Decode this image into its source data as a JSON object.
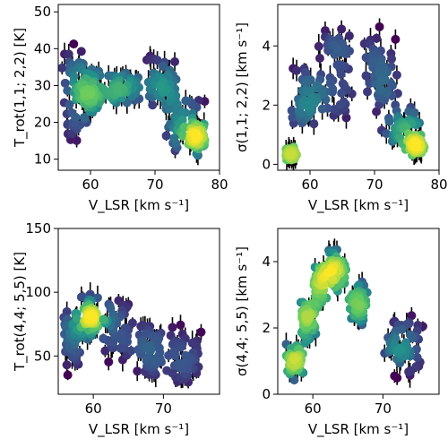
{
  "chart_data": [
    {
      "type": "scatter",
      "xlabel": "V_LSR [km s⁻¹]",
      "ylabel": "T_rot(1,1; 2,2) [K]",
      "xlim": [
        55,
        80
      ],
      "ylim": [
        7,
        52
      ],
      "xticks": [
        "60",
        "70",
        "80"
      ],
      "yticks": [
        "10",
        "20",
        "30",
        "40",
        "50"
      ],
      "error_bars": true,
      "color_encoding": "point density (viridis)",
      "colors": {
        "low": "#440154",
        "mid": "#21918c",
        "high": "#fde725"
      },
      "clusters": [
        {
          "x": [
            55.5,
            59.5
          ],
          "y": [
            12,
            44
          ]
        },
        {
          "x": [
            58,
            62
          ],
          "y": [
            22,
            35
          ]
        },
        {
          "x": [
            62,
            68
          ],
          "y": [
            24,
            34
          ]
        },
        {
          "x": [
            68,
            74
          ],
          "y": [
            22,
            42
          ]
        },
        {
          "x": [
            71,
            78
          ],
          "y": [
            10,
            28
          ]
        },
        {
          "x": [
            75,
            78
          ],
          "y": [
            12,
            20
          ]
        }
      ]
    },
    {
      "type": "scatter",
      "xlabel": "V_LSR [km s⁻¹]",
      "ylabel": "σ(1,1; 2,2) [km s⁻¹]",
      "xlim": [
        55,
        80
      ],
      "ylim": [
        -0.2,
        5.4
      ],
      "xticks": [
        "60",
        "70",
        "80"
      ],
      "yticks": [
        "0",
        "2",
        "4"
      ],
      "error_bars": true,
      "color_encoding": "point density (viridis)",
      "colors": {
        "low": "#440154",
        "mid": "#21918c",
        "high": "#fde725"
      },
      "clusters": [
        {
          "x": [
            56,
            58
          ],
          "y": [
            0.1,
            0.6
          ]
        },
        {
          "x": [
            57,
            62
          ],
          "y": [
            1.0,
            3.6
          ]
        },
        {
          "x": [
            61,
            67
          ],
          "y": [
            1.3,
            5.0
          ]
        },
        {
          "x": [
            68,
            74
          ],
          "y": [
            1.5,
            4.8
          ]
        },
        {
          "x": [
            71,
            78
          ],
          "y": [
            0.3,
            2.0
          ]
        },
        {
          "x": [
            75,
            78
          ],
          "y": [
            0.3,
            0.9
          ]
        }
      ]
    },
    {
      "type": "scatter",
      "xlabel": "V_LSR [km s⁻¹]",
      "ylabel": "T_rot(4,4; 5,5) [K]",
      "xlim": [
        55,
        78
      ],
      "ylim": [
        20,
        150
      ],
      "xticks": [
        "60",
        "70"
      ],
      "yticks": [
        "50",
        "100",
        "150"
      ],
      "error_bars": true,
      "color_encoding": "point density (viridis)",
      "colors": {
        "low": "#440154",
        "mid": "#21918c",
        "high": "#fde725"
      },
      "clusters": [
        {
          "x": [
            55.5,
            58.5
          ],
          "y": [
            30,
            90
          ]
        },
        {
          "x": [
            58,
            61
          ],
          "y": [
            55,
            100
          ]
        },
        {
          "x": [
            59,
            60.5
          ],
          "y": [
            75,
            88
          ]
        },
        {
          "x": [
            61,
            66
          ],
          "y": [
            40,
            100
          ]
        },
        {
          "x": [
            66,
            70
          ],
          "y": [
            30,
            80
          ]
        },
        {
          "x": [
            70,
            76
          ],
          "y": [
            25,
            75
          ]
        }
      ]
    },
    {
      "type": "scatter",
      "xlabel": "V_LSR [km s⁻¹]",
      "ylabel": "σ(4,4; 5,5) [km s⁻¹]",
      "xlim": [
        55,
        78
      ],
      "ylim": [
        0,
        5
      ],
      "xticks": [
        "60",
        "70"
      ],
      "yticks": [
        "0",
        "2",
        "4"
      ],
      "error_bars": true,
      "color_encoding": "point density (viridis)",
      "colors": {
        "low": "#440154",
        "mid": "#21918c",
        "high": "#fde725"
      },
      "clusters": [
        {
          "x": [
            56,
            59
          ],
          "y": [
            0.4,
            1.6
          ]
        },
        {
          "x": [
            58,
            60.5
          ],
          "y": [
            1.5,
            2.8
          ]
        },
        {
          "x": [
            60,
            62
          ],
          "y": [
            2.5,
            4.0
          ]
        },
        {
          "x": [
            62,
            65
          ],
          "y": [
            3.0,
            4.5
          ]
        },
        {
          "x": [
            65,
            68
          ],
          "y": [
            2.0,
            3.5
          ]
        },
        {
          "x": [
            70,
            76
          ],
          "y": [
            0.4,
            2.5
          ]
        }
      ]
    }
  ]
}
